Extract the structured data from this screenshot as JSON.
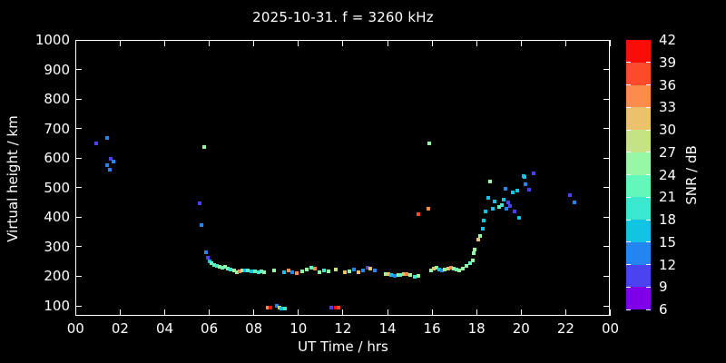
{
  "title": "2025-10-31. f = 3260 kHz",
  "chart_data": {
    "type": "scatter",
    "title": "2025-10-31. f = 3260 kHz",
    "xlabel": "UT Time / hrs",
    "ylabel": "Virtual height / km",
    "xlim": [
      0,
      24
    ],
    "ylim": [
      100,
      1000
    ],
    "grid": false,
    "background_color": "#000000",
    "axis_color": "#ffffff",
    "x_tick_labels": [
      "00",
      "02",
      "04",
      "06",
      "08",
      "10",
      "12",
      "14",
      "16",
      "18",
      "20",
      "22",
      "00"
    ],
    "y_tick_labels": [
      "100",
      "200",
      "300",
      "400",
      "500",
      "600",
      "700",
      "800",
      "900",
      "1000"
    ],
    "colorbar": {
      "label": "SNR / dB",
      "tick_labels": [
        "42",
        "39",
        "36",
        "33",
        "30",
        "27",
        "24",
        "21",
        "18",
        "15",
        "12",
        "9",
        "6"
      ],
      "bins": [
        {
          "min": 39,
          "max": 42,
          "color": "#fb0d07"
        },
        {
          "min": 36,
          "max": 39,
          "color": "#fb4b2b"
        },
        {
          "min": 33,
          "max": 36,
          "color": "#fb8c4b"
        },
        {
          "min": 30,
          "max": 33,
          "color": "#ecc16c"
        },
        {
          "min": 27,
          "max": 30,
          "color": "#c6e383"
        },
        {
          "min": 24,
          "max": 27,
          "color": "#96f7a4"
        },
        {
          "min": 21,
          "max": 24,
          "color": "#63f7bc"
        },
        {
          "min": 18,
          "max": 21,
          "color": "#3ae8d0"
        },
        {
          "min": 15,
          "max": 18,
          "color": "#13c3e3"
        },
        {
          "min": 12,
          "max": 15,
          "color": "#2484f0"
        },
        {
          "min": 9,
          "max": 12,
          "color": "#4b42f0"
        },
        {
          "min": 6,
          "max": 9,
          "color": "#7d00e8"
        }
      ]
    },
    "points_format": [
      "ut_hour",
      "virtual_height_km",
      "snr_db"
    ],
    "points": [
      [
        0.92,
        650,
        10
      ],
      [
        1.41,
        668,
        13
      ],
      [
        1.41,
        576,
        13
      ],
      [
        1.54,
        561,
        13
      ],
      [
        1.58,
        598,
        10
      ],
      [
        1.7,
        588,
        13
      ],
      [
        5.57,
        447,
        10
      ],
      [
        5.65,
        373,
        13
      ],
      [
        5.77,
        637,
        25
      ],
      [
        5.85,
        281,
        13
      ],
      [
        5.93,
        263,
        10
      ],
      [
        6.02,
        250,
        16
      ],
      [
        6.1,
        244,
        22
      ],
      [
        6.22,
        238,
        22
      ],
      [
        6.34,
        235,
        19
      ],
      [
        6.46,
        232,
        25
      ],
      [
        6.59,
        229,
        22
      ],
      [
        6.71,
        232,
        25
      ],
      [
        6.83,
        226,
        22
      ],
      [
        6.95,
        223,
        19
      ],
      [
        7.12,
        220,
        25
      ],
      [
        7.24,
        214,
        25
      ],
      [
        7.36,
        217,
        34
      ],
      [
        7.48,
        220,
        28
      ],
      [
        7.6,
        220,
        16
      ],
      [
        7.73,
        220,
        22
      ],
      [
        7.89,
        217,
        16
      ],
      [
        8.05,
        217,
        22
      ],
      [
        8.22,
        214,
        19
      ],
      [
        8.34,
        217,
        22
      ],
      [
        8.46,
        214,
        25
      ],
      [
        8.91,
        220,
        25
      ],
      [
        9.36,
        214,
        16
      ],
      [
        9.56,
        220,
        34
      ],
      [
        9.72,
        214,
        13
      ],
      [
        9.93,
        211,
        34
      ],
      [
        10.17,
        217,
        25
      ],
      [
        10.38,
        223,
        25
      ],
      [
        10.58,
        229,
        22
      ],
      [
        10.74,
        226,
        34
      ],
      [
        10.94,
        214,
        25
      ],
      [
        11.15,
        220,
        19
      ],
      [
        11.35,
        217,
        25
      ],
      [
        11.68,
        223,
        28
      ],
      [
        12.09,
        214,
        31
      ],
      [
        12.29,
        217,
        25
      ],
      [
        12.49,
        223,
        13
      ],
      [
        12.7,
        214,
        31
      ],
      [
        12.9,
        220,
        13
      ],
      [
        13.1,
        229,
        10
      ],
      [
        13.22,
        226,
        31
      ],
      [
        13.43,
        220,
        13
      ],
      [
        13.92,
        207,
        25
      ],
      [
        14.04,
        207,
        31
      ],
      [
        14.18,
        204,
        16
      ],
      [
        14.31,
        201,
        13
      ],
      [
        14.47,
        204,
        25
      ],
      [
        14.59,
        204,
        22
      ],
      [
        14.73,
        207,
        31
      ],
      [
        14.85,
        207,
        34
      ],
      [
        15.02,
        204,
        25
      ],
      [
        15.22,
        198,
        19
      ],
      [
        15.38,
        201,
        25
      ],
      [
        15.95,
        220,
        25
      ],
      [
        16.08,
        226,
        31
      ],
      [
        16.2,
        229,
        25
      ],
      [
        16.32,
        223,
        16
      ],
      [
        16.44,
        220,
        13
      ],
      [
        16.56,
        223,
        25
      ],
      [
        16.73,
        226,
        31
      ],
      [
        16.85,
        229,
        34
      ],
      [
        16.97,
        226,
        25
      ],
      [
        17.1,
        223,
        22
      ],
      [
        17.22,
        220,
        25
      ],
      [
        17.38,
        226,
        25
      ],
      [
        17.54,
        235,
        25
      ],
      [
        17.71,
        244,
        22
      ],
      [
        17.83,
        254,
        25
      ],
      [
        17.87,
        278,
        25
      ],
      [
        17.91,
        290,
        25
      ],
      [
        18.07,
        324,
        31
      ],
      [
        18.15,
        336,
        25
      ],
      [
        18.28,
        361,
        16
      ],
      [
        18.32,
        389,
        16
      ],
      [
        18.4,
        419,
        16
      ],
      [
        18.52,
        465,
        16
      ],
      [
        18.6,
        521,
        25
      ],
      [
        18.72,
        429,
        16
      ],
      [
        18.81,
        453,
        16
      ],
      [
        19.01,
        435,
        22
      ],
      [
        19.13,
        441,
        19
      ],
      [
        19.21,
        459,
        16
      ],
      [
        19.3,
        496,
        13
      ],
      [
        19.34,
        429,
        13
      ],
      [
        19.42,
        450,
        10
      ],
      [
        19.5,
        438,
        10
      ],
      [
        19.62,
        484,
        16
      ],
      [
        19.7,
        420,
        10
      ],
      [
        19.82,
        490,
        16
      ],
      [
        19.91,
        398,
        16
      ],
      [
        20.11,
        539,
        16
      ],
      [
        20.15,
        536,
        16
      ],
      [
        20.19,
        512,
        13
      ],
      [
        20.35,
        493,
        10
      ],
      [
        20.56,
        548,
        10
      ],
      [
        22.19,
        475,
        10
      ],
      [
        22.39,
        450,
        13
      ],
      [
        15.38,
        410,
        37
      ],
      [
        15.83,
        429,
        34
      ],
      [
        15.87,
        650,
        25
      ],
      [
        8.62,
        95,
        34
      ],
      [
        8.75,
        95,
        40
      ],
      [
        9.03,
        99,
        13
      ],
      [
        9.15,
        95,
        31
      ],
      [
        9.23,
        91,
        16
      ],
      [
        9.31,
        90,
        16
      ],
      [
        9.39,
        92,
        19
      ],
      [
        11.47,
        95,
        10
      ],
      [
        11.68,
        95,
        40
      ],
      [
        11.8,
        95,
        37
      ]
    ]
  }
}
